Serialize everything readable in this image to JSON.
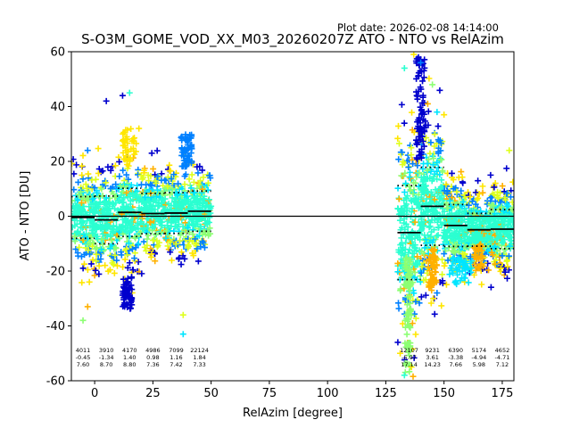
{
  "chart_data": {
    "type": "scatter",
    "title": "S-O3M_GOME_VOD_XX_M03_20260207Z ATO - NTO vs RelAzim",
    "subtitle": "Plot date: 2026-02-08 14:14:00",
    "xlabel": "RelAzim [degree]",
    "ylabel": "ATO - NTO [DU]",
    "xlim": [
      -10,
      180
    ],
    "ylim": [
      -60,
      60
    ],
    "xticks": [
      0,
      25,
      50,
      75,
      100,
      125,
      150,
      175
    ],
    "yticks": [
      -60,
      -40,
      -20,
      0,
      20,
      40,
      60
    ],
    "grid": false,
    "marker": "+",
    "palette": [
      "#0000cd",
      "#0080ff",
      "#00e5ff",
      "#2bffd1",
      "#8cff73",
      "#dfff1c",
      "#ffe600",
      "#ffb000"
    ],
    "bins": [
      {
        "x0": -10,
        "x1": 0,
        "count": "4011",
        "mean": "-0.45",
        "std": "7.60",
        "mean_value": -0.45,
        "std_value": 7.6
      },
      {
        "x0": 0,
        "x1": 10,
        "count": "3910",
        "mean": "-1.34",
        "std": "8.70",
        "mean_value": -1.34,
        "std_value": 8.7
      },
      {
        "x0": 10,
        "x1": 20,
        "count": "4170",
        "mean": "1.40",
        "std": "8.80",
        "mean_value": 1.4,
        "std_value": 8.8
      },
      {
        "x0": 20,
        "x1": 30,
        "count": "4986",
        "mean": "0.98",
        "std": "7.36",
        "mean_value": 0.98,
        "std_value": 7.36
      },
      {
        "x0": 30,
        "x1": 40,
        "count": "7099",
        "mean": "1.16",
        "std": "7.42",
        "mean_value": 1.16,
        "std_value": 7.42
      },
      {
        "x0": 40,
        "x1": 50,
        "count": "22124",
        "mean": "1.84",
        "std": "7.33",
        "mean_value": 1.84,
        "std_value": 7.33
      },
      {
        "x0": 130,
        "x1": 140,
        "count": "12107",
        "mean": "-5.97",
        "std": "17.14",
        "mean_value": -5.97,
        "std_value": 17.14
      },
      {
        "x0": 140,
        "x1": 150,
        "count": "9231",
        "mean": "3.61",
        "std": "14.23",
        "mean_value": 3.61,
        "std_value": 14.23
      },
      {
        "x0": 150,
        "x1": 160,
        "count": "6390",
        "mean": "-3.38",
        "std": "7.66",
        "mean_value": -3.38,
        "std_value": 7.66
      },
      {
        "x0": 160,
        "x1": 170,
        "count": "5174",
        "mean": "-4.94",
        "std": "5.98",
        "mean_value": -4.94,
        "std_value": 5.98
      },
      {
        "x0": 170,
        "x1": 180,
        "count": "4652",
        "mean": "-4.71",
        "std": "7.12",
        "mean_value": -4.71,
        "std_value": 7.12
      }
    ],
    "clusters": [
      {
        "x": [
          -10,
          50
        ],
        "y": [
          -24,
          20
        ],
        "note": "dense band"
      },
      {
        "x": [
          130,
          180
        ],
        "y": [
          -28,
          20
        ],
        "note": "dense band"
      }
    ],
    "outliers": [
      [
        12,
        44
      ],
      [
        15,
        45
      ],
      [
        19,
        32
      ],
      [
        -3,
        24
      ],
      [
        -5,
        -38
      ],
      [
        -3,
        -33
      ],
      [
        38,
        -43
      ],
      [
        38,
        -36
      ],
      [
        5,
        42
      ],
      [
        133,
        54
      ],
      [
        137,
        59
      ],
      [
        140,
        56
      ],
      [
        145,
        48
      ],
      [
        143,
        41
      ],
      [
        147,
        38
      ],
      [
        178,
        24
      ],
      [
        170,
        15
      ],
      [
        133,
        -58
      ],
      [
        136,
        -55
      ],
      [
        147,
        -28
      ]
    ]
  }
}
